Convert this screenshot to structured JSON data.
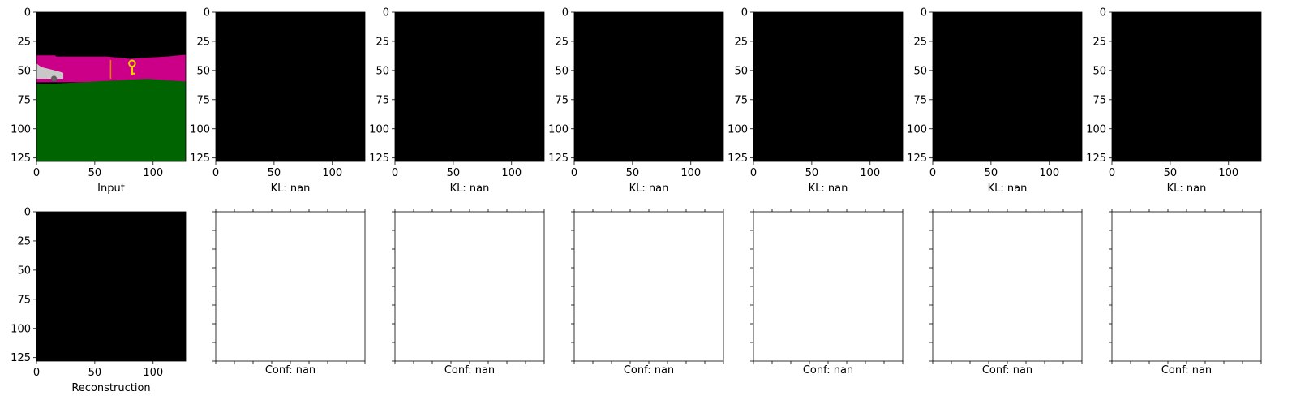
{
  "colors": {
    "background": "#ffffff",
    "axis": "#000000",
    "black_image": "#000000",
    "empty_panel": "#ffffff",
    "scene_sky": "#cc0088",
    "scene_ground": "#006400",
    "scene_top": "#000000",
    "scene_key": "#f0d000",
    "scene_marker": "#e08000",
    "scene_car": "#c8c8c8"
  },
  "chart_data": [
    {
      "type": "heatmap",
      "panel": "input",
      "image": "rgb scene",
      "xlabel": "Input",
      "xlim": [
        0,
        128
      ],
      "ylim": [
        128,
        0
      ],
      "xticks": [
        0,
        50,
        100
      ],
      "yticks": [
        0,
        25,
        50,
        75,
        100,
        125
      ],
      "scene": {
        "sky_band_rows": [
          37,
          60
        ],
        "ground_start_row": 60,
        "key_position": [
          82,
          49
        ],
        "marker_column": 63,
        "car_position": [
          10,
          54
        ]
      }
    },
    {
      "type": "heatmap",
      "panel": "kl-1",
      "image": "black",
      "xlabel": "KL: nan",
      "xlim": [
        0,
        128
      ],
      "ylim": [
        128,
        0
      ],
      "xticks": [
        0,
        50,
        100
      ],
      "yticks": [
        0,
        25,
        50,
        75,
        100,
        125
      ]
    },
    {
      "type": "heatmap",
      "panel": "kl-2",
      "image": "black",
      "xlabel": "KL: nan",
      "xlim": [
        0,
        128
      ],
      "ylim": [
        128,
        0
      ],
      "xticks": [
        0,
        50,
        100
      ],
      "yticks": [
        0,
        25,
        50,
        75,
        100,
        125
      ]
    },
    {
      "type": "heatmap",
      "panel": "kl-3",
      "image": "black",
      "xlabel": "KL: nan",
      "xlim": [
        0,
        128
      ],
      "ylim": [
        128,
        0
      ],
      "xticks": [
        0,
        50,
        100
      ],
      "yticks": [
        0,
        25,
        50,
        75,
        100,
        125
      ]
    },
    {
      "type": "heatmap",
      "panel": "kl-4",
      "image": "black",
      "xlabel": "KL: nan",
      "xlim": [
        0,
        128
      ],
      "ylim": [
        128,
        0
      ],
      "xticks": [
        0,
        50,
        100
      ],
      "yticks": [
        0,
        25,
        50,
        75,
        100,
        125
      ]
    },
    {
      "type": "heatmap",
      "panel": "kl-5",
      "image": "black",
      "xlabel": "KL: nan",
      "xlim": [
        0,
        128
      ],
      "ylim": [
        128,
        0
      ],
      "xticks": [
        0,
        50,
        100
      ],
      "yticks": [
        0,
        25,
        50,
        75,
        100,
        125
      ]
    },
    {
      "type": "heatmap",
      "panel": "kl-6",
      "image": "black",
      "xlabel": "KL: nan",
      "xlim": [
        0,
        128
      ],
      "ylim": [
        128,
        0
      ],
      "xticks": [
        0,
        50,
        100
      ],
      "yticks": [
        0,
        25,
        50,
        75,
        100,
        125
      ]
    },
    {
      "type": "heatmap",
      "panel": "reconstruction",
      "image": "black",
      "xlabel": "Reconstruction",
      "xlim": [
        0,
        128
      ],
      "ylim": [
        128,
        0
      ],
      "xticks": [
        0,
        50,
        100
      ],
      "yticks": [
        0,
        25,
        50,
        75,
        100,
        125
      ]
    },
    {
      "type": "heatmap",
      "panel": "conf-1",
      "image": "empty",
      "xlabel": "Conf: nan",
      "unlabeled_ticks": true,
      "xticks": [
        0,
        0.125,
        0.25,
        0.375,
        0.5,
        0.625,
        0.75,
        0.875,
        1
      ],
      "yticks": [
        0,
        0.125,
        0.25,
        0.375,
        0.5,
        0.625,
        0.75,
        0.875,
        1
      ]
    },
    {
      "type": "heatmap",
      "panel": "conf-2",
      "image": "empty",
      "xlabel": "Conf: nan",
      "unlabeled_ticks": true,
      "xticks": [
        0,
        0.125,
        0.25,
        0.375,
        0.5,
        0.625,
        0.75,
        0.875,
        1
      ],
      "yticks": [
        0,
        0.125,
        0.25,
        0.375,
        0.5,
        0.625,
        0.75,
        0.875,
        1
      ]
    },
    {
      "type": "heatmap",
      "panel": "conf-3",
      "image": "empty",
      "xlabel": "Conf: nan",
      "unlabeled_ticks": true,
      "xticks": [
        0,
        0.125,
        0.25,
        0.375,
        0.5,
        0.625,
        0.75,
        0.875,
        1
      ],
      "yticks": [
        0,
        0.125,
        0.25,
        0.375,
        0.5,
        0.625,
        0.75,
        0.875,
        1
      ]
    },
    {
      "type": "heatmap",
      "panel": "conf-4",
      "image": "empty",
      "xlabel": "Conf: nan",
      "unlabeled_ticks": true,
      "xticks": [
        0,
        0.125,
        0.25,
        0.375,
        0.5,
        0.625,
        0.75,
        0.875,
        1
      ],
      "yticks": [
        0,
        0.125,
        0.25,
        0.375,
        0.5,
        0.625,
        0.75,
        0.875,
        1
      ]
    },
    {
      "type": "heatmap",
      "panel": "conf-5",
      "image": "empty",
      "xlabel": "Conf: nan",
      "unlabeled_ticks": true,
      "xticks": [
        0,
        0.125,
        0.25,
        0.375,
        0.5,
        0.625,
        0.75,
        0.875,
        1
      ],
      "yticks": [
        0,
        0.125,
        0.25,
        0.375,
        0.5,
        0.625,
        0.75,
        0.875,
        1
      ]
    },
    {
      "type": "heatmap",
      "panel": "conf-6",
      "image": "empty",
      "xlabel": "Conf: nan",
      "unlabeled_ticks": true,
      "xticks": [
        0,
        0.125,
        0.25,
        0.375,
        0.5,
        0.625,
        0.75,
        0.875,
        1
      ],
      "yticks": [
        0,
        0.125,
        0.25,
        0.375,
        0.5,
        0.625,
        0.75,
        0.875,
        1
      ]
    }
  ]
}
